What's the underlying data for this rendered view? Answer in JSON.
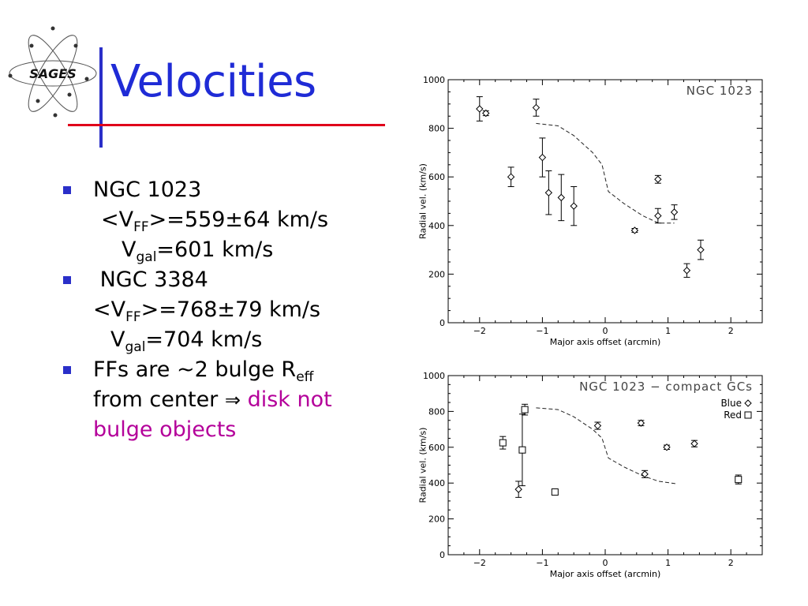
{
  "slide": {
    "logo_text": "SAGES",
    "title": "Velocities",
    "bullets": [
      {
        "line1": "NGC 1023",
        "ff_pre": "<V",
        "ff_sub": "FF",
        "ff_post": ">=559±64 km/s",
        "gal_pre": "V",
        "gal_sub": "gal",
        "gal_post": "=601 km/s"
      },
      {
        "line1": " NGC 3384",
        "ff_pre": "<V",
        "ff_sub": "FF",
        "ff_post": ">=768±79 km/s",
        "gal_pre": "V",
        "gal_sub": "gal",
        "gal_post": "=704 km/s"
      },
      {
        "text_a": "FFs are ~2 bulge R",
        "text_a_sub": "eff",
        "text_b": "from center ",
        "arrow": "⇒",
        "highlight_a": " disk not",
        "highlight_b": "bulge objects"
      }
    ],
    "colors": {
      "title": "#1f2bd6",
      "accent_rule": "#e0001b",
      "bullet": "#2a2fc9",
      "highlight": "#b4009a"
    }
  },
  "chart_data": [
    {
      "type": "scatter",
      "title": "NGC 1023",
      "xlabel": "Major axis offset (arcmin)",
      "ylabel": "Radial vel. (km/s)",
      "xlim": [
        -2.5,
        2.5
      ],
      "ylim": [
        0,
        1000
      ],
      "xticks": [
        -2,
        -1,
        0,
        1,
        2
      ],
      "xtick_labels": [
        "−2",
        "−1",
        "0",
        "1",
        "2"
      ],
      "yticks": [
        0,
        200,
        400,
        600,
        800,
        1000
      ],
      "ytick_labels": [
        "0",
        "200",
        "400",
        "600",
        "800",
        "1000"
      ],
      "series": [
        {
          "marker": "diamond",
          "points": [
            {
              "x": -2.0,
              "y": 880,
              "err": 50
            },
            {
              "x": -1.9,
              "y": 862,
              "err": 10
            },
            {
              "x": -1.5,
              "y": 600,
              "err": 40
            },
            {
              "x": -1.1,
              "y": 885,
              "err": 35
            },
            {
              "x": -1.0,
              "y": 680,
              "err": 80
            },
            {
              "x": -0.9,
              "y": 535,
              "err": 90
            },
            {
              "x": -0.7,
              "y": 515,
              "err": 95
            },
            {
              "x": -0.5,
              "y": 480,
              "err": 80
            },
            {
              "x": 0.47,
              "y": 380,
              "err": 8
            },
            {
              "x": 0.84,
              "y": 590,
              "err": 16
            },
            {
              "x": 0.84,
              "y": 440,
              "err": 30
            },
            {
              "x": 1.1,
              "y": 455,
              "err": 30
            },
            {
              "x": 1.3,
              "y": 215,
              "err": 28
            },
            {
              "x": 1.52,
              "y": 300,
              "err": 40
            }
          ]
        }
      ],
      "model_curve": {
        "style": "dashed",
        "x": [
          -1.1,
          -0.75,
          -0.5,
          -0.2,
          -0.05,
          0.05,
          0.3,
          0.6,
          0.85,
          1.1
        ],
        "y": [
          820,
          810,
          770,
          700,
          650,
          540,
          490,
          440,
          410,
          410
        ]
      }
    },
    {
      "type": "scatter",
      "title": "NGC 1023 − compact GCs",
      "xlabel": "Major axis offset (arcmin)",
      "ylabel": "Radial vel. (km/s)",
      "xlim": [
        -2.5,
        2.5
      ],
      "ylim": [
        0,
        1000
      ],
      "xticks": [
        -2,
        -1,
        0,
        1,
        2
      ],
      "xtick_labels": [
        "−2",
        "−1",
        "0",
        "1",
        "2"
      ],
      "yticks": [
        0,
        200,
        400,
        600,
        800,
        1000
      ],
      "ytick_labels": [
        "0",
        "200",
        "400",
        "600",
        "800",
        "1000"
      ],
      "legend": {
        "position": "top-right",
        "entries": [
          {
            "label": "Blue",
            "marker": "diamond"
          },
          {
            "label": "Red",
            "marker": "square"
          }
        ]
      },
      "series": [
        {
          "name": "Blue",
          "marker": "diamond",
          "points": [
            {
              "x": -1.38,
              "y": 365,
              "err": 45
            },
            {
              "x": -0.12,
              "y": 720,
              "err": 20
            },
            {
              "x": 0.57,
              "y": 735,
              "err": 15
            },
            {
              "x": 0.63,
              "y": 450,
              "err": 20
            },
            {
              "x": 0.98,
              "y": 600,
              "err": 12
            },
            {
              "x": 1.42,
              "y": 620,
              "err": 18
            }
          ]
        },
        {
          "name": "Red",
          "marker": "square",
          "points": [
            {
              "x": -1.63,
              "y": 625,
              "err": 35
            },
            {
              "x": -1.28,
              "y": 810,
              "err": 30
            },
            {
              "x": -1.32,
              "y": 585,
              "err": 200
            },
            {
              "x": -0.8,
              "y": 350,
              "err": 0
            },
            {
              "x": 2.12,
              "y": 420,
              "err": 25
            }
          ]
        }
      ],
      "model_curve": {
        "style": "dashed",
        "x": [
          -1.1,
          -0.75,
          -0.5,
          -0.2,
          -0.05,
          0.05,
          0.3,
          0.6,
          0.85,
          1.15
        ],
        "y": [
          820,
          810,
          770,
          700,
          650,
          540,
          490,
          440,
          410,
          395
        ]
      }
    }
  ]
}
